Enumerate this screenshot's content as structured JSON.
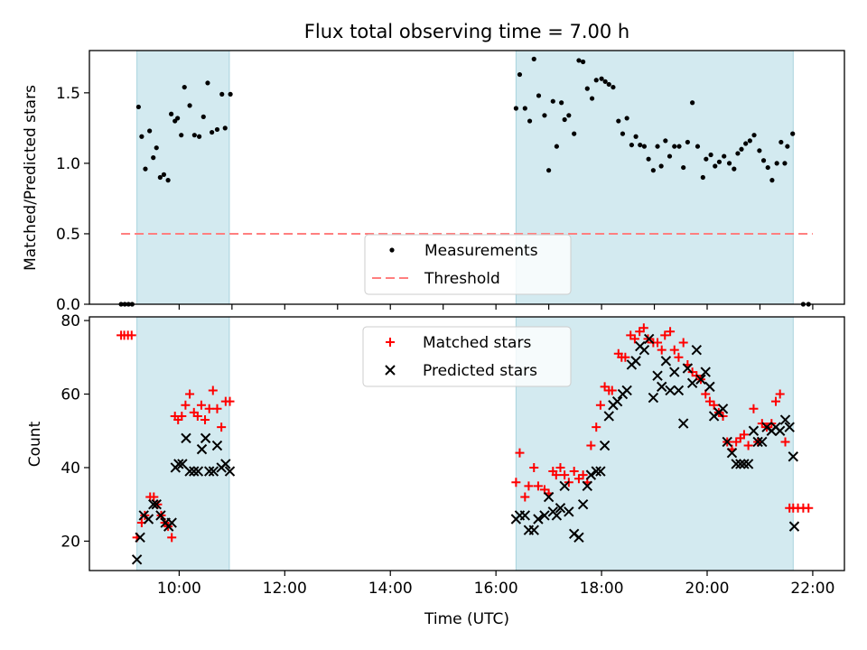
{
  "title": "Flux total observing time = 7.00 h",
  "chart_data": [
    {
      "type": "scatter",
      "panel": "top",
      "ylabel": "Matched/Predicted stars",
      "ylim": [
        0,
        1.8
      ],
      "yticks": [
        0.0,
        0.5,
        1.0,
        1.5
      ],
      "xlim": [
        8.3,
        22.6
      ],
      "shaded_intervals": [
        [
          9.2,
          10.95
        ],
        [
          16.38,
          21.63
        ]
      ],
      "shade_color": "#d3eaf0",
      "threshold": {
        "name": "Threshold",
        "value": 0.5,
        "x_range": [
          8.9,
          22.0
        ],
        "color": "#ff7f7f"
      },
      "legend": {
        "placement": "lower-center",
        "entries": [
          {
            "label": "Measurements",
            "marker": "dot"
          },
          {
            "label": "Threshold",
            "marker": "dashed-line"
          }
        ]
      },
      "series": [
        {
          "name": "Measurements",
          "color": "#000000",
          "marker": "dot",
          "x": [
            8.9,
            8.97,
            9.04,
            9.11,
            9.23,
            9.29,
            9.36,
            9.44,
            9.51,
            9.57,
            9.64,
            9.71,
            9.79,
            9.85,
            9.92,
            9.97,
            10.04,
            10.1,
            10.2,
            10.29,
            10.38,
            10.46,
            10.54,
            10.62,
            10.72,
            10.81,
            10.87,
            10.97,
            16.38,
            16.45,
            16.55,
            16.64,
            16.72,
            16.81,
            16.92,
            17.0,
            17.08,
            17.15,
            17.24,
            17.3,
            17.38,
            17.48,
            17.57,
            17.65,
            17.73,
            17.82,
            17.9,
            18.0,
            18.07,
            18.14,
            18.22,
            18.32,
            18.4,
            18.48,
            18.57,
            18.65,
            18.73,
            18.81,
            18.89,
            18.98,
            19.06,
            19.13,
            19.21,
            19.29,
            19.38,
            19.47,
            19.55,
            19.63,
            19.72,
            19.82,
            19.92,
            19.98,
            20.07,
            20.15,
            20.23,
            20.32,
            20.42,
            20.51,
            20.58,
            20.65,
            20.73,
            20.81,
            20.89,
            20.99,
            21.07,
            21.15,
            21.23,
            21.32,
            21.4,
            21.47,
            21.52,
            21.62,
            21.82,
            21.92
          ],
          "y": [
            0.0,
            0.0,
            0.0,
            0.0,
            1.4,
            1.19,
            0.96,
            1.23,
            1.04,
            1.11,
            0.9,
            0.92,
            0.88,
            1.35,
            1.3,
            1.32,
            1.2,
            1.54,
            1.41,
            1.2,
            1.19,
            1.33,
            1.57,
            1.22,
            1.24,
            1.49,
            1.25,
            1.49,
            1.39,
            1.63,
            1.39,
            1.3,
            1.74,
            1.48,
            1.34,
            0.95,
            1.44,
            1.12,
            1.43,
            1.31,
            1.34,
            1.21,
            1.73,
            1.72,
            1.53,
            1.46,
            1.59,
            1.6,
            1.58,
            1.56,
            1.54,
            1.3,
            1.21,
            1.32,
            1.13,
            1.19,
            1.13,
            1.12,
            1.03,
            0.95,
            1.12,
            0.98,
            1.16,
            1.05,
            1.12,
            1.12,
            0.97,
            1.15,
            1.43,
            1.12,
            0.9,
            1.03,
            1.06,
            0.98,
            1.01,
            1.05,
            1.0,
            0.96,
            1.07,
            1.1,
            1.14,
            1.16,
            1.2,
            1.09,
            1.02,
            0.97,
            0.88,
            1.0,
            1.15,
            1.0,
            1.12,
            1.21,
            0.0,
            0.0
          ]
        }
      ]
    },
    {
      "type": "scatter",
      "panel": "bottom",
      "xlabel": "Time (UTC)",
      "ylabel": "Count",
      "ylim": [
        12,
        81
      ],
      "yticks": [
        20,
        40,
        60,
        80
      ],
      "xlim": [
        8.3,
        22.6
      ],
      "xticks": [
        10,
        12,
        14,
        16,
        18,
        20,
        22
      ],
      "xtick_labels": [
        "10:00",
        "12:00",
        "14:00",
        "16:00",
        "18:00",
        "20:00",
        "22:00"
      ],
      "shaded_intervals": [
        [
          9.2,
          10.95
        ],
        [
          16.38,
          21.63
        ]
      ],
      "shade_color": "#d3eaf0",
      "legend": {
        "placement": "upper-center",
        "entries": [
          {
            "label": "Matched stars",
            "marker": "plus"
          },
          {
            "label": "Predicted stars",
            "marker": "x"
          }
        ]
      },
      "series": [
        {
          "name": "Matched stars",
          "color": "#ff0000",
          "marker": "plus",
          "x": [
            8.9,
            8.96,
            9.03,
            9.1,
            9.2,
            9.29,
            9.35,
            9.45,
            9.52,
            9.59,
            9.66,
            9.73,
            9.79,
            9.86,
            9.92,
            9.98,
            10.05,
            10.12,
            10.2,
            10.28,
            10.35,
            10.42,
            10.49,
            10.57,
            10.64,
            10.72,
            10.8,
            10.88,
            10.96,
            16.38,
            16.45,
            16.55,
            16.62,
            16.72,
            16.8,
            16.92,
            17.0,
            17.08,
            17.14,
            17.22,
            17.3,
            17.38,
            17.48,
            17.57,
            17.65,
            17.73,
            17.8,
            17.9,
            17.98,
            18.06,
            18.14,
            18.2,
            18.32,
            18.38,
            18.45,
            18.55,
            18.63,
            18.72,
            18.8,
            18.88,
            18.98,
            19.06,
            19.14,
            19.2,
            19.3,
            19.38,
            19.46,
            19.55,
            19.63,
            19.72,
            19.8,
            19.88,
            19.97,
            20.05,
            20.13,
            20.22,
            20.3,
            20.38,
            20.47,
            20.55,
            20.63,
            20.7,
            20.78,
            20.88,
            20.96,
            21.04,
            21.13,
            21.22,
            21.3,
            21.38,
            21.48,
            21.56,
            21.63,
            21.72,
            21.82,
            21.92
          ],
          "y": [
            76,
            76,
            76,
            76,
            21,
            25,
            27,
            32,
            32,
            30,
            27,
            25,
            24,
            21,
            54,
            53,
            54,
            57,
            60,
            55,
            54,
            57,
            53,
            56,
            61,
            56,
            51,
            58,
            58,
            36,
            44,
            32,
            35,
            40,
            35,
            34,
            33,
            39,
            38,
            40,
            38,
            36,
            39,
            37,
            38,
            36,
            46,
            51,
            57,
            62,
            61,
            61,
            71,
            70,
            70,
            76,
            75,
            77,
            78,
            75,
            74,
            74,
            72,
            76,
            77,
            72,
            70,
            74,
            68,
            66,
            65,
            64,
            60,
            58,
            57,
            55,
            54,
            47,
            45,
            47,
            48,
            49,
            46,
            56,
            47,
            52,
            51,
            52,
            58,
            60,
            47,
            29,
            29,
            29,
            29,
            29
          ]
        },
        {
          "name": "Predicted stars",
          "color": "#000000",
          "marker": "x",
          "x": [
            9.2,
            9.26,
            9.33,
            9.42,
            9.51,
            9.57,
            9.65,
            9.74,
            9.8,
            9.86,
            9.93,
            9.99,
            10.06,
            10.13,
            10.2,
            10.28,
            10.36,
            10.43,
            10.5,
            10.57,
            10.65,
            10.72,
            10.8,
            10.88,
            10.96,
            16.38,
            16.45,
            16.55,
            16.62,
            16.72,
            16.8,
            16.92,
            17.0,
            17.08,
            17.15,
            17.22,
            17.3,
            17.38,
            17.48,
            17.57,
            17.65,
            17.73,
            17.8,
            17.9,
            17.98,
            18.06,
            18.14,
            18.22,
            18.3,
            18.4,
            18.48,
            18.57,
            18.65,
            18.73,
            18.81,
            18.9,
            18.98,
            19.06,
            19.14,
            19.22,
            19.3,
            19.38,
            19.46,
            19.55,
            19.63,
            19.72,
            19.8,
            19.88,
            19.97,
            20.05,
            20.13,
            20.22,
            20.3,
            20.38,
            20.47,
            20.55,
            20.63,
            20.7,
            20.78,
            20.88,
            20.96,
            21.04,
            21.13,
            21.22,
            21.3,
            21.38,
            21.48,
            21.56,
            21.63
          ],
          "y": [
            15,
            21,
            27,
            26,
            30,
            30,
            27,
            25,
            24,
            25,
            40,
            41,
            41,
            48,
            39,
            39,
            39,
            45,
            48,
            39,
            39,
            46,
            40,
            41,
            39,
            26,
            27,
            27,
            23,
            23,
            26,
            27,
            32,
            28,
            27,
            29,
            35,
            28,
            22,
            21,
            30,
            35,
            38,
            39,
            39,
            46,
            54,
            57,
            58,
            60,
            61,
            68,
            69,
            73,
            72,
            75,
            59,
            65,
            62,
            69,
            61,
            66,
            61,
            52,
            67,
            63,
            72,
            64,
            66,
            62,
            54,
            55,
            56,
            47,
            44,
            41,
            41,
            41,
            41,
            50,
            47,
            47,
            51,
            50,
            51,
            50,
            53,
            51,
            43
          ]
        },
        {
          "name": "",
          "color": "#000000",
          "marker": "x",
          "x": [
            21.65
          ],
          "y": [
            24
          ]
        }
      ]
    }
  ]
}
